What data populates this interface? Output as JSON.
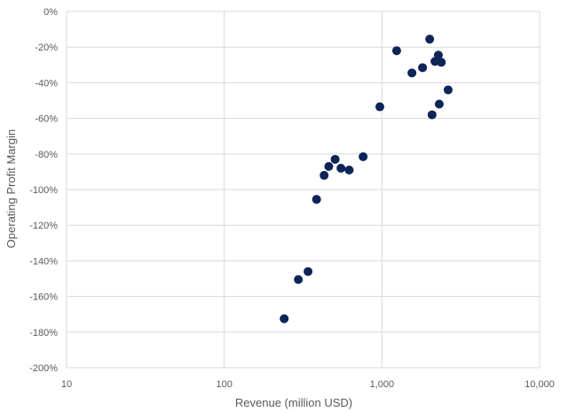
{
  "chart_data": {
    "type": "scatter",
    "title": "",
    "xlabel": "Revenue (million USD)",
    "ylabel": "Operating Profit Margin",
    "x_scale": "log",
    "xlim": [
      10,
      10000
    ],
    "ylim": [
      -200,
      0
    ],
    "x_ticks": [
      10,
      100,
      1000,
      10000
    ],
    "x_tick_labels": [
      "10",
      "100",
      "1,000",
      "10,000"
    ],
    "y_ticks": [
      0,
      -20,
      -40,
      -60,
      -80,
      -100,
      -120,
      -140,
      -160,
      -180,
      -200
    ],
    "y_tick_labels": [
      "0%",
      "-20%",
      "-40%",
      "-60%",
      "-80%",
      "-100%",
      "-120%",
      "-140%",
      "-160%",
      "-180%",
      "-200%"
    ],
    "grid": true,
    "legend": "none",
    "marker_color": "#0d2457",
    "series": [
      {
        "points": [
          {
            "x": 2010,
            "y": -15.5
          },
          {
            "x": 1240,
            "y": -22
          },
          {
            "x": 2280,
            "y": -24.5
          },
          {
            "x": 2170,
            "y": -28
          },
          {
            "x": 2380,
            "y": -28.5
          },
          {
            "x": 1810,
            "y": -31.5
          },
          {
            "x": 1550,
            "y": -34.5
          },
          {
            "x": 2630,
            "y": -44
          },
          {
            "x": 2310,
            "y": -52
          },
          {
            "x": 970,
            "y": -53.5
          },
          {
            "x": 2080,
            "y": -58
          },
          {
            "x": 760,
            "y": -81.5
          },
          {
            "x": 505,
            "y": -83
          },
          {
            "x": 460,
            "y": -87
          },
          {
            "x": 550,
            "y": -88
          },
          {
            "x": 620,
            "y": -89
          },
          {
            "x": 430,
            "y": -92
          },
          {
            "x": 385,
            "y": -105.5
          },
          {
            "x": 340,
            "y": -146
          },
          {
            "x": 295,
            "y": -150.5
          },
          {
            "x": 240,
            "y": -172.5
          }
        ]
      }
    ]
  }
}
